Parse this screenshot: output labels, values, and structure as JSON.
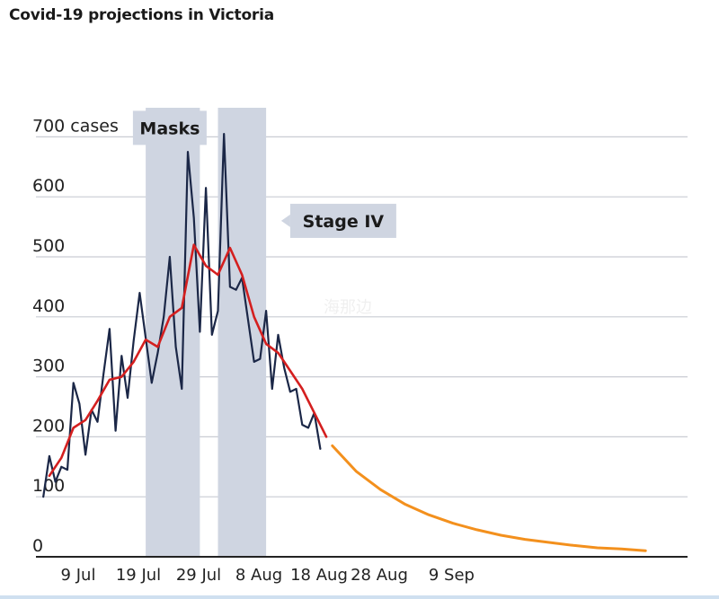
{
  "chart_data": {
    "type": "line",
    "title": "Covid-19 projections in Victoria",
    "ylabel": "",
    "xlabel": "",
    "yticks": [
      {
        "value": 0,
        "label": "0"
      },
      {
        "value": 100,
        "label": "100"
      },
      {
        "value": 200,
        "label": "200"
      },
      {
        "value": 300,
        "label": "300"
      },
      {
        "value": 400,
        "label": "400"
      },
      {
        "value": 500,
        "label": "500"
      },
      {
        "value": 600,
        "label": "600"
      },
      {
        "value": 700,
        "label": "700 cases"
      }
    ],
    "xticks": [
      {
        "date": "2020-07-09",
        "label": "9 Jul"
      },
      {
        "date": "2020-07-19",
        "label": "19 Jul"
      },
      {
        "date": "2020-07-29",
        "label": "29 Jul"
      },
      {
        "date": "2020-08-08",
        "label": "8 Aug"
      },
      {
        "date": "2020-08-18",
        "label": "18 Aug"
      },
      {
        "date": "2020-08-28",
        "label": "28 Aug"
      },
      {
        "date": "2020-09-09",
        "label": "9 Sep"
      }
    ],
    "xlim": [
      "2020-07-06",
      "2020-10-15"
    ],
    "ylim": [
      0,
      720
    ],
    "grid": true,
    "shaded_periods": [
      {
        "start": "2020-07-22",
        "end": "2020-07-31"
      },
      {
        "start": "2020-08-03",
        "end": "2020-08-11"
      }
    ],
    "annotations": [
      {
        "label": "Masks",
        "date": "2020-07-26",
        "y": 715
      },
      {
        "label": "Stage IV",
        "date": "2020-08-15",
        "y": 560
      }
    ],
    "series": [
      {
        "role": "daily",
        "color": "#1b2747",
        "x": [
          "2020-07-05",
          "2020-07-06",
          "2020-07-07",
          "2020-07-08",
          "2020-07-09",
          "2020-07-10",
          "2020-07-11",
          "2020-07-12",
          "2020-07-13",
          "2020-07-14",
          "2020-07-15",
          "2020-07-16",
          "2020-07-17",
          "2020-07-18",
          "2020-07-19",
          "2020-07-20",
          "2020-07-21",
          "2020-07-22",
          "2020-07-23",
          "2020-07-24",
          "2020-07-25",
          "2020-07-26",
          "2020-07-27",
          "2020-07-28",
          "2020-07-29",
          "2020-07-30",
          "2020-07-31",
          "2020-08-01",
          "2020-08-02",
          "2020-08-03",
          "2020-08-04",
          "2020-08-05",
          "2020-08-06",
          "2020-08-07",
          "2020-08-08",
          "2020-08-09",
          "2020-08-10",
          "2020-08-11",
          "2020-08-12",
          "2020-08-13",
          "2020-08-14",
          "2020-08-15",
          "2020-08-16",
          "2020-08-17",
          "2020-08-18",
          "2020-08-19",
          "2020-08-20",
          "2020-08-21",
          "2020-08-22",
          "2020-08-23"
        ],
        "values": [
          100,
          168,
          125,
          150,
          145,
          290,
          255,
          170,
          245,
          225,
          305,
          380,
          210,
          335,
          265,
          360,
          440,
          365,
          290,
          340,
          400,
          500,
          350,
          280,
          675,
          565,
          375,
          615,
          370,
          410,
          705,
          450,
          445,
          465,
          395,
          325,
          330,
          410,
          280,
          370,
          315,
          275,
          280,
          220,
          215,
          240,
          180,
          null,
          null,
          null
        ]
      },
      {
        "role": "average",
        "color": "#d41f1f",
        "x": [
          "2020-07-06",
          "2020-07-08",
          "2020-07-10",
          "2020-07-12",
          "2020-07-14",
          "2020-07-16",
          "2020-07-18",
          "2020-07-20",
          "2020-07-22",
          "2020-07-24",
          "2020-07-26",
          "2020-07-28",
          "2020-07-30",
          "2020-08-01",
          "2020-08-03",
          "2020-08-05",
          "2020-08-07",
          "2020-08-09",
          "2020-08-11",
          "2020-08-13",
          "2020-08-15",
          "2020-08-17",
          "2020-08-19",
          "2020-08-21"
        ],
        "values": [
          135,
          165,
          215,
          228,
          260,
          295,
          300,
          325,
          362,
          350,
          400,
          415,
          520,
          485,
          470,
          515,
          470,
          400,
          355,
          340,
          310,
          280,
          240,
          200
        ]
      },
      {
        "role": "projection",
        "color": "#f3901d",
        "x": [
          "2020-08-22",
          "2020-08-26",
          "2020-08-30",
          "2020-09-03",
          "2020-09-07",
          "2020-09-11",
          "2020-09-15",
          "2020-09-19",
          "2020-09-23",
          "2020-09-27",
          "2020-10-01",
          "2020-10-05",
          "2020-10-09",
          "2020-10-13"
        ],
        "values": [
          185,
          142,
          112,
          88,
          70,
          56,
          45,
          36,
          29,
          24,
          19,
          15,
          13,
          10
        ]
      }
    ]
  },
  "watermark": "海那边"
}
